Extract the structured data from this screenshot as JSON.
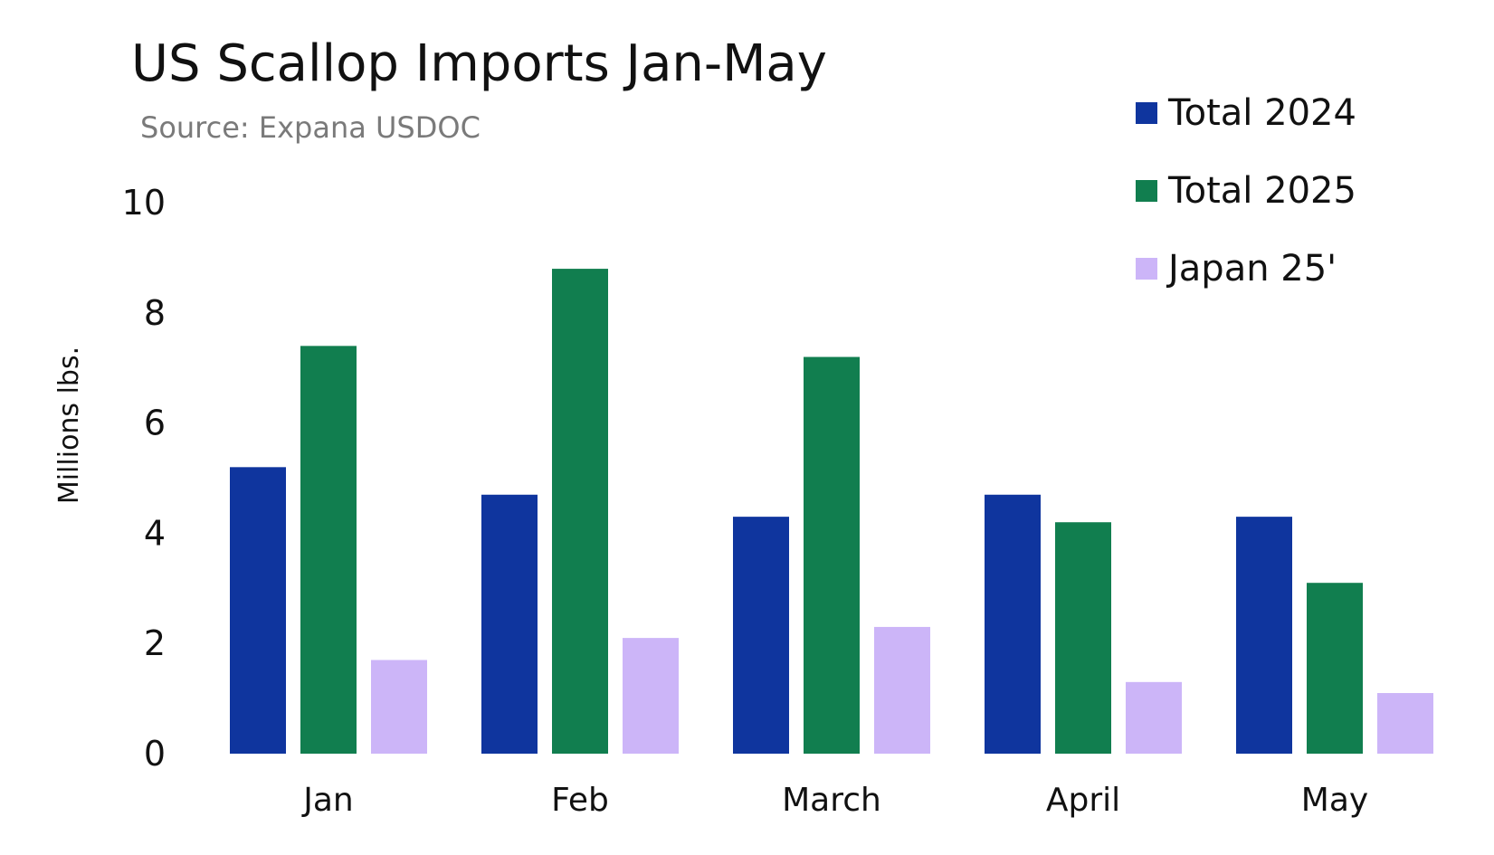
{
  "chart_data": {
    "type": "bar",
    "title": "US Scallop Imports Jan-May",
    "subtitle": "Source: Expana USDOC",
    "ylabel": "Millions lbs.",
    "xlabel": "",
    "categories": [
      "Jan",
      "Feb",
      "March",
      "April",
      "May"
    ],
    "series": [
      {
        "name": "Total 2024",
        "color": "#0f359e",
        "values": [
          5.2,
          4.7,
          4.3,
          4.7,
          4.3
        ]
      },
      {
        "name": "Total 2025",
        "color": "#117e4f",
        "values": [
          7.4,
          8.8,
          7.2,
          4.2,
          3.1
        ]
      },
      {
        "name": "Japan 25'",
        "color": "#ccb5f8",
        "values": [
          1.7,
          2.1,
          2.3,
          1.3,
          1.1
        ]
      }
    ],
    "ylim": [
      0,
      10
    ],
    "yticks": [
      "0",
      "2",
      "4",
      "6",
      "8",
      "10"
    ],
    "grid": false,
    "legend_position": "top-right"
  }
}
